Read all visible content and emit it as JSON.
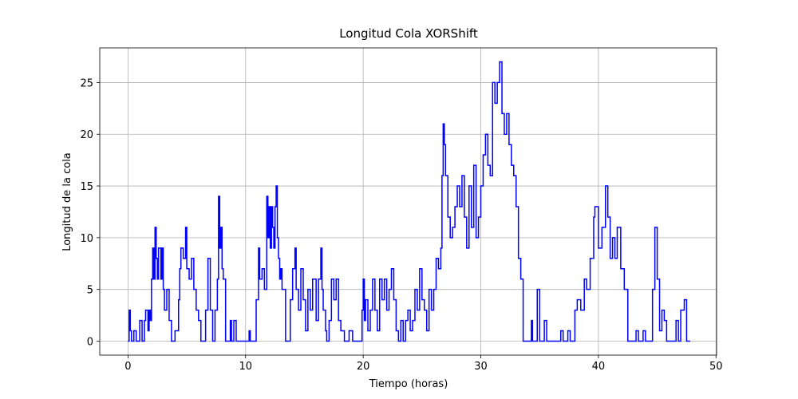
{
  "chart_data": {
    "type": "line",
    "title": "Longitud Cola XORShift",
    "xlabel": "Tiempo (horas)",
    "ylabel": "Longitud de la cola",
    "drawstyle": "steps-post",
    "grid": true,
    "xlim": [
      -2.4,
      50.05
    ],
    "ylim": [
      -1.35,
      28.35
    ],
    "xticks": [
      0,
      10,
      20,
      30,
      40,
      50
    ],
    "yticks": [
      0,
      5,
      10,
      15,
      20,
      25
    ],
    "series": [
      {
        "color": "#0000ff",
        "x": [
          0,
          0.1,
          0.2,
          0.3,
          0.5,
          0.7,
          1.0,
          1.2,
          1.4,
          1.5,
          1.7,
          1.8,
          1.9,
          2.0,
          2.1,
          2.2,
          2.3,
          2.4,
          2.5,
          2.6,
          2.8,
          2.9,
          3.0,
          3.1,
          3.3,
          3.5,
          3.7,
          4.0,
          4.3,
          4.4,
          4.5,
          4.7,
          4.9,
          5.0,
          5.2,
          5.4,
          5.6,
          5.8,
          6.0,
          6.2,
          6.6,
          6.8,
          7.0,
          7.2,
          7.4,
          7.6,
          7.7,
          7.8,
          7.9,
          8.0,
          8.1,
          8.3,
          8.7,
          8.8,
          9.0,
          9.2,
          10.3,
          10.4,
          10.9,
          11.1,
          11.2,
          11.4,
          11.6,
          11.8,
          11.9,
          12.0,
          12.1,
          12.2,
          12.3,
          12.4,
          12.5,
          12.6,
          12.7,
          12.8,
          12.9,
          13.0,
          13.1,
          13.4,
          13.8,
          14.0,
          14.2,
          14.3,
          14.5,
          14.7,
          14.9,
          15.1,
          15.3,
          15.5,
          15.7,
          16.0,
          16.2,
          16.4,
          16.5,
          16.6,
          16.8,
          16.9,
          17.1,
          17.3,
          17.5,
          17.7,
          17.9,
          18.1,
          18.4,
          18.8,
          19.1,
          19.9,
          20.0,
          20.1,
          20.2,
          20.4,
          20.6,
          20.8,
          21.0,
          21.2,
          21.4,
          21.6,
          21.8,
          22.0,
          22.2,
          22.4,
          22.6,
          22.8,
          23.0,
          23.2,
          23.4,
          23.6,
          23.8,
          24.0,
          24.2,
          24.4,
          24.6,
          24.8,
          25.0,
          25.2,
          25.4,
          25.6,
          25.8,
          26.0,
          26.2,
          26.4,
          26.6,
          26.7,
          26.8,
          26.9,
          27.0,
          27.2,
          27.4,
          27.6,
          27.8,
          28.0,
          28.2,
          28.4,
          28.6,
          28.8,
          29.0,
          29.2,
          29.4,
          29.6,
          29.8,
          30.0,
          30.2,
          30.4,
          30.6,
          30.8,
          31.0,
          31.2,
          31.4,
          31.6,
          31.8,
          32.0,
          32.2,
          32.4,
          32.6,
          32.8,
          33.0,
          33.2,
          33.4,
          33.6,
          34.3,
          34.4,
          34.8,
          35.0,
          35.4,
          35.6,
          36.8,
          37.0,
          37.4,
          37.6,
          38.0,
          38.2,
          38.5,
          38.8,
          39.0,
          39.3,
          39.6,
          39.7,
          40.0,
          40.3,
          40.6,
          40.8,
          41.0,
          41.2,
          41.4,
          41.6,
          41.9,
          42.2,
          42.5,
          43.2,
          43.4,
          43.8,
          44.0,
          44.6,
          44.8,
          45.0,
          45.2,
          45.4,
          45.6,
          45.8,
          46.6,
          46.8,
          47.0,
          47.3,
          47.5,
          47.8
        ],
        "values": [
          0,
          3,
          1,
          0,
          1,
          0,
          2,
          0,
          2,
          3,
          1,
          3,
          2,
          6,
          9,
          6,
          11,
          8,
          6,
          9,
          6,
          9,
          5,
          3,
          5,
          2,
          0,
          1,
          4,
          7,
          9,
          8,
          11,
          7,
          6,
          8,
          5,
          3,
          2,
          0,
          3,
          8,
          3,
          0,
          3,
          6,
          14,
          9,
          11,
          7,
          6,
          0,
          2,
          0,
          2,
          0,
          1,
          0,
          4,
          9,
          6,
          7,
          5,
          14,
          10,
          13,
          9,
          13,
          11,
          9,
          13,
          15,
          10,
          8,
          6,
          7,
          5,
          0,
          4,
          7,
          9,
          5,
          3,
          7,
          4,
          1,
          5,
          3,
          6,
          2,
          6,
          9,
          5,
          3,
          1,
          0,
          2,
          6,
          4,
          6,
          2,
          1,
          0,
          1,
          0,
          3,
          6,
          2,
          4,
          1,
          3,
          6,
          3,
          1,
          6,
          4,
          6,
          3,
          5,
          7,
          4,
          1,
          0,
          2,
          0,
          2,
          3,
          1,
          2,
          5,
          3,
          7,
          4,
          3,
          1,
          5,
          3,
          5,
          8,
          7,
          9,
          16,
          21,
          19,
          16,
          12,
          10,
          11,
          13,
          15,
          13,
          16,
          12,
          9,
          15,
          11,
          17,
          10,
          12,
          15,
          18,
          20,
          17,
          16,
          25,
          23,
          25,
          27,
          22,
          20,
          22,
          19,
          17,
          16,
          13,
          8,
          6,
          0,
          2,
          0,
          5,
          0,
          2,
          0,
          1,
          0,
          1,
          0,
          3,
          4,
          3,
          6,
          5,
          8,
          12,
          13,
          9,
          11,
          15,
          12,
          8,
          10,
          8,
          11,
          7,
          5,
          0,
          1,
          0,
          1,
          0,
          5,
          11,
          6,
          1,
          3,
          2,
          0,
          2,
          0,
          3,
          4,
          0,
          0
        ]
      }
    ]
  }
}
